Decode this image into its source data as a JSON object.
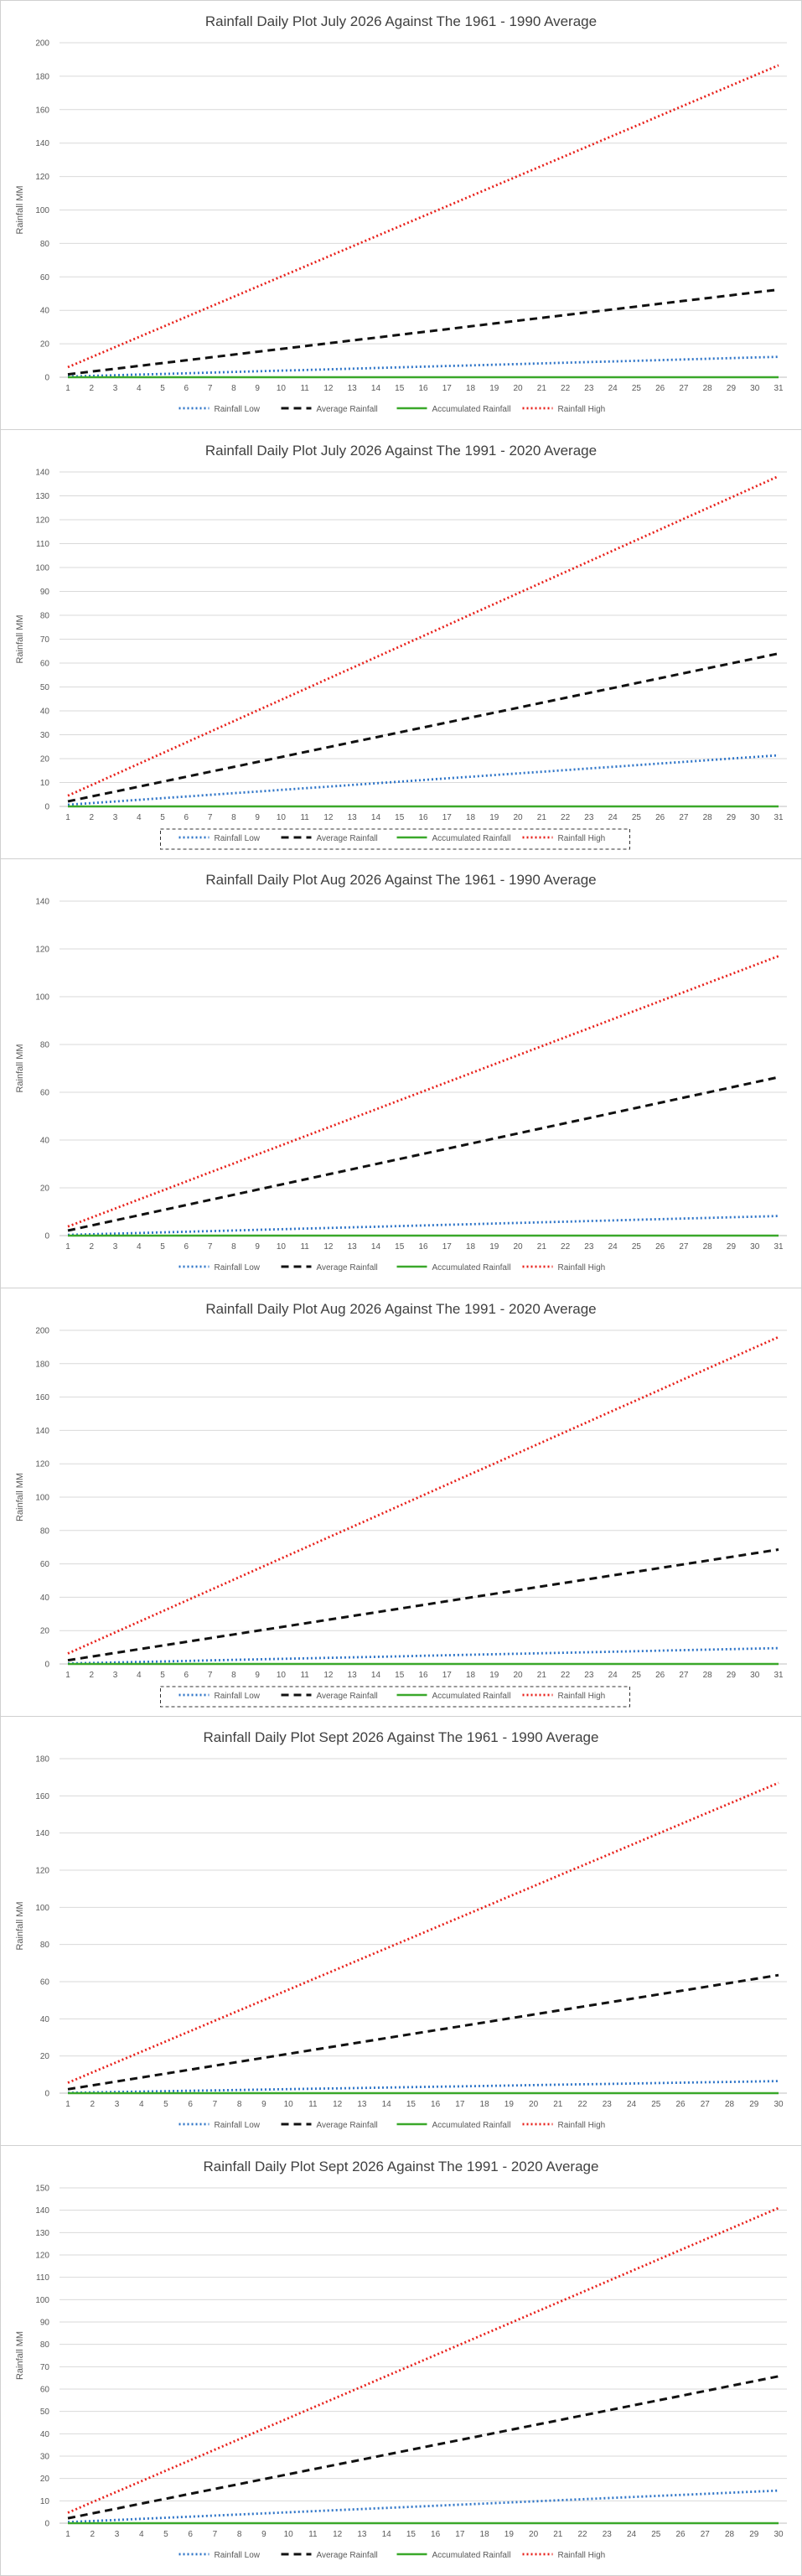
{
  "chart_data": [
    {
      "type": "line",
      "title": "Rainfall Daily Plot July 2026 Against The 1961 - 1990 Average",
      "ylabel": "Rainfall MM",
      "xlabel": "",
      "x": [
        1,
        2,
        3,
        4,
        5,
        6,
        7,
        8,
        9,
        10,
        11,
        12,
        13,
        14,
        15,
        16,
        17,
        18,
        19,
        20,
        21,
        22,
        23,
        24,
        25,
        26,
        27,
        28,
        29,
        30,
        31
      ],
      "ylim": [
        0,
        200
      ],
      "ystep": 20,
      "grid": true,
      "legend_position": "bottom",
      "legend_boxed": false,
      "series": [
        {
          "name": "Rainfall Low",
          "start": 0.4,
          "end": 12.2
        },
        {
          "name": "Average Rainfall",
          "start": 1.7,
          "end": 52.4
        },
        {
          "name": "Accumulated Rainfall",
          "start": 0,
          "end": 0
        },
        {
          "name": "Rainfall High",
          "start": 6.0,
          "end": 186.5
        }
      ]
    },
    {
      "type": "line",
      "title": "Rainfall Daily Plot July 2026 Against The 1991 - 2020 Average",
      "ylabel": "Rainfall MM",
      "xlabel": "",
      "x": [
        1,
        2,
        3,
        4,
        5,
        6,
        7,
        8,
        9,
        10,
        11,
        12,
        13,
        14,
        15,
        16,
        17,
        18,
        19,
        20,
        21,
        22,
        23,
        24,
        25,
        26,
        27,
        28,
        29,
        30,
        31
      ],
      "ylim": [
        0,
        140
      ],
      "ystep": 10,
      "grid": true,
      "legend_position": "bottom",
      "legend_boxed": true,
      "series": [
        {
          "name": "Rainfall Low",
          "start": 0.7,
          "end": 21.4
        },
        {
          "name": "Average Rainfall",
          "start": 2.1,
          "end": 64.0
        },
        {
          "name": "Accumulated Rainfall",
          "start": 0,
          "end": 0
        },
        {
          "name": "Rainfall High",
          "start": 4.5,
          "end": 138.2
        }
      ]
    },
    {
      "type": "line",
      "title": "Rainfall Daily Plot Aug 2026 Against The 1961 - 1990 Average",
      "ylabel": "Rainfall MM",
      "xlabel": "",
      "x": [
        1,
        2,
        3,
        4,
        5,
        6,
        7,
        8,
        9,
        10,
        11,
        12,
        13,
        14,
        15,
        16,
        17,
        18,
        19,
        20,
        21,
        22,
        23,
        24,
        25,
        26,
        27,
        28,
        29,
        30,
        31
      ],
      "ylim": [
        0,
        140
      ],
      "ystep": 20,
      "grid": true,
      "legend_position": "bottom",
      "legend_boxed": false,
      "series": [
        {
          "name": "Rainfall Low",
          "start": 0.3,
          "end": 8.2
        },
        {
          "name": "Average Rainfall",
          "start": 2.1,
          "end": 66.3
        },
        {
          "name": "Accumulated Rainfall",
          "start": 0,
          "end": 0
        },
        {
          "name": "Rainfall High",
          "start": 3.8,
          "end": 117.0
        }
      ]
    },
    {
      "type": "line",
      "title": "Rainfall Daily Plot Aug 2026 Against The 1991 - 2020 Average",
      "ylabel": "Rainfall MM",
      "xlabel": "",
      "x": [
        1,
        2,
        3,
        4,
        5,
        6,
        7,
        8,
        9,
        10,
        11,
        12,
        13,
        14,
        15,
        16,
        17,
        18,
        19,
        20,
        21,
        22,
        23,
        24,
        25,
        26,
        27,
        28,
        29,
        30,
        31
      ],
      "ylim": [
        0,
        200
      ],
      "ystep": 20,
      "grid": true,
      "legend_position": "bottom",
      "legend_boxed": true,
      "series": [
        {
          "name": "Rainfall Low",
          "start": 0.3,
          "end": 9.5
        },
        {
          "name": "Average Rainfall",
          "start": 2.2,
          "end": 68.6
        },
        {
          "name": "Accumulated Rainfall",
          "start": 0,
          "end": 0
        },
        {
          "name": "Rainfall High",
          "start": 6.3,
          "end": 196.0
        }
      ]
    },
    {
      "type": "line",
      "title": "Rainfall Daily Plot Sept 2026 Against The 1961 - 1990 Average",
      "ylabel": "Rainfall MM",
      "xlabel": "",
      "x": [
        1,
        2,
        3,
        4,
        5,
        6,
        7,
        8,
        9,
        10,
        11,
        12,
        13,
        14,
        15,
        16,
        17,
        18,
        19,
        20,
        21,
        22,
        23,
        24,
        25,
        26,
        27,
        28,
        29,
        30
      ],
      "ylim": [
        0,
        180
      ],
      "ystep": 20,
      "grid": true,
      "legend_position": "bottom",
      "legend_boxed": false,
      "series": [
        {
          "name": "Rainfall Low",
          "start": 0.2,
          "end": 6.5
        },
        {
          "name": "Average Rainfall",
          "start": 2.1,
          "end": 63.5
        },
        {
          "name": "Accumulated Rainfall",
          "start": 0,
          "end": 0
        },
        {
          "name": "Rainfall High",
          "start": 5.6,
          "end": 167.0
        }
      ]
    },
    {
      "type": "line",
      "title": "Rainfall Daily Plot Sept 2026 Against The 1991 - 2020 Average",
      "ylabel": "Rainfall MM",
      "xlabel": "",
      "x": [
        1,
        2,
        3,
        4,
        5,
        6,
        7,
        8,
        9,
        10,
        11,
        12,
        13,
        14,
        15,
        16,
        17,
        18,
        19,
        20,
        21,
        22,
        23,
        24,
        25,
        26,
        27,
        28,
        29,
        30
      ],
      "ylim": [
        0,
        150
      ],
      "ystep": 10,
      "grid": true,
      "legend_position": "bottom",
      "legend_boxed": false,
      "series": [
        {
          "name": "Rainfall Low",
          "start": 0.5,
          "end": 14.6
        },
        {
          "name": "Average Rainfall",
          "start": 2.2,
          "end": 65.7
        },
        {
          "name": "Accumulated Rainfall",
          "start": 0,
          "end": 0
        },
        {
          "name": "Rainfall High",
          "start": 4.7,
          "end": 141.0
        }
      ]
    }
  ],
  "series_style": {
    "Rainfall Low": {
      "color": "#2f75c8",
      "dash": "2,3",
      "width": 2.8,
      "legend_glyph": "dotted-blue-line-icon"
    },
    "Average Rainfall": {
      "color": "#111111",
      "dash": "9,6",
      "width": 3,
      "legend_glyph": "dashed-black-line-icon"
    },
    "Accumulated Rainfall": {
      "color": "#3aa82a",
      "dash": "",
      "width": 2.4,
      "legend_glyph": "solid-green-line-icon"
    },
    "Rainfall High": {
      "color": "#e8211b",
      "dash": "2,3",
      "width": 2.8,
      "legend_glyph": "dotted-red-line-icon"
    }
  },
  "colors": {
    "grid": "#d9d9d9",
    "axis": "#bfbfbf",
    "text": "#595959",
    "title": "#404040",
    "border": "#d0d0d0"
  }
}
